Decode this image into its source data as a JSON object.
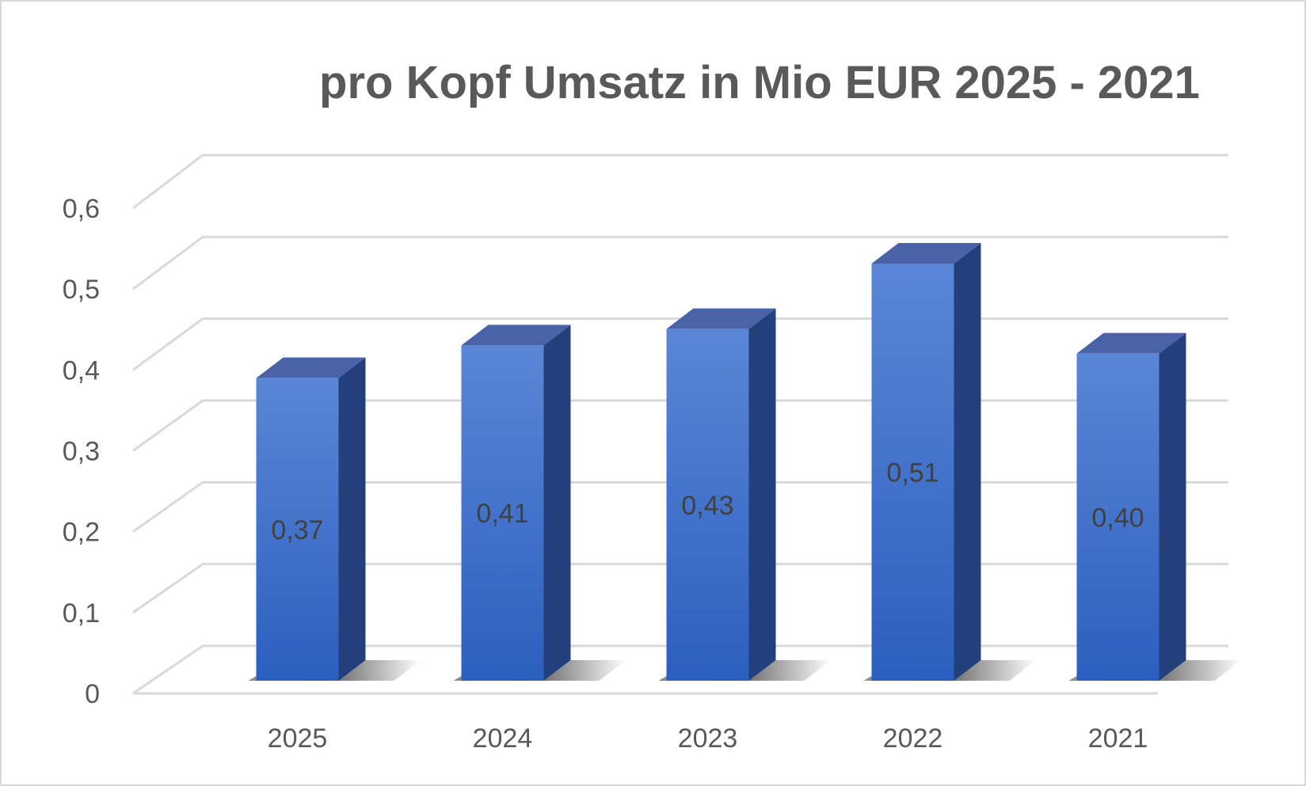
{
  "chart_data": {
    "type": "bar",
    "title": "pro Kopf Umsatz in Mio EUR 2025 - 2021",
    "categories": [
      "2025",
      "2024",
      "2023",
      "2022",
      "2021"
    ],
    "values": [
      0.37,
      0.41,
      0.43,
      0.51,
      0.4
    ],
    "data_labels": [
      "0,37",
      "0,41",
      "0,43",
      "0,51",
      "0,40"
    ],
    "y_ticks": [
      0,
      0.1,
      0.2,
      0.3,
      0.4,
      0.5,
      0.6
    ],
    "y_tick_labels": [
      "0",
      "0,1",
      "0,2",
      "0,3",
      "0,4",
      "0,5",
      "0,6"
    ],
    "ylim": [
      0,
      0.6
    ],
    "xlabel": "",
    "ylabel": "",
    "grid": true,
    "legend": "none",
    "style": "3d-column",
    "colors": {
      "bar_top": "#4a63a8",
      "bar_front_light": "#5b86d6",
      "bar_front_dark": "#2b5fbf",
      "bar_side": "#233f7c",
      "grid": "#d9d9d9",
      "text": "#595959",
      "data_label": "#404040"
    }
  }
}
